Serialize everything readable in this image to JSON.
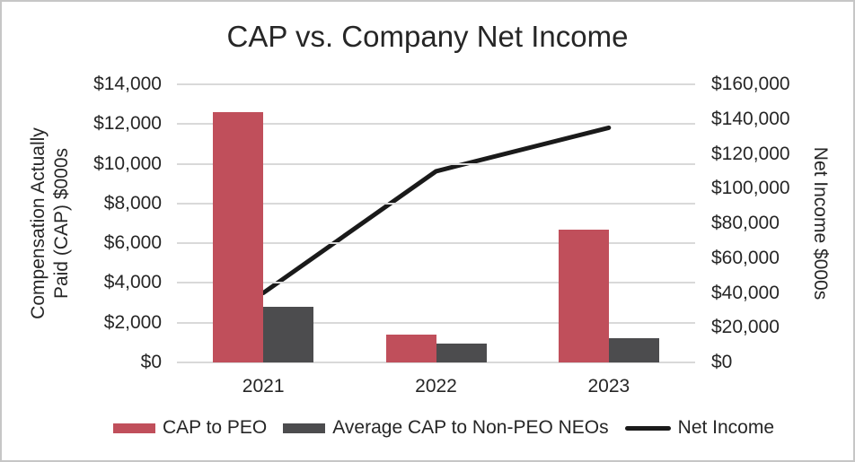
{
  "title": "CAP vs. Company Net Income",
  "chart_data": {
    "type": "combo_bar_line",
    "categories": [
      "2021",
      "2022",
      "2023"
    ],
    "series": [
      {
        "name": "CAP to PEO",
        "type": "bar",
        "axis": "left",
        "color": "#c04f5b",
        "values": [
          12600,
          1400,
          6700
        ]
      },
      {
        "name": "Average CAP to Non-PEO NEOs",
        "type": "bar",
        "axis": "left",
        "color": "#4c4c4e",
        "values": [
          2800,
          950,
          1200
        ]
      },
      {
        "name": "Net Income",
        "type": "line",
        "axis": "right",
        "color": "#1a1a1a",
        "values": [
          40000,
          110000,
          135000
        ]
      }
    ],
    "left_axis": {
      "title": "Compensation Actually Paid (CAP) $000s",
      "title_lines": [
        "Compensation Actually",
        "Paid (CAP) $000s"
      ],
      "min": 0,
      "max": 14000,
      "tick_step": 2000,
      "tick_labels": [
        "$0",
        "$2,000",
        "$4,000",
        "$6,000",
        "$8,000",
        "$10,000",
        "$12,000",
        "$14,000"
      ]
    },
    "right_axis": {
      "title": "Net Income $000s",
      "min": 0,
      "max": 160000,
      "tick_step": 20000,
      "tick_labels": [
        "$0",
        "$20,000",
        "$40,000",
        "$60,000",
        "$80,000",
        "$100,000",
        "$120,000",
        "$140,000",
        "$160,000"
      ]
    },
    "grid": true,
    "legend_position": "bottom"
  },
  "legend": {
    "items": [
      {
        "label": "CAP to PEO",
        "swatch": "bar",
        "color": "#c04f5b"
      },
      {
        "label": "Average CAP to Non-PEO NEOs",
        "swatch": "bar",
        "color": "#4c4c4e"
      },
      {
        "label": "Net Income",
        "swatch": "line",
        "color": "#1a1a1a"
      }
    ]
  },
  "colors": {
    "grid": "#d9d9d9",
    "text": "#262626",
    "background": "#ffffff",
    "border": "#c6c6c6"
  }
}
